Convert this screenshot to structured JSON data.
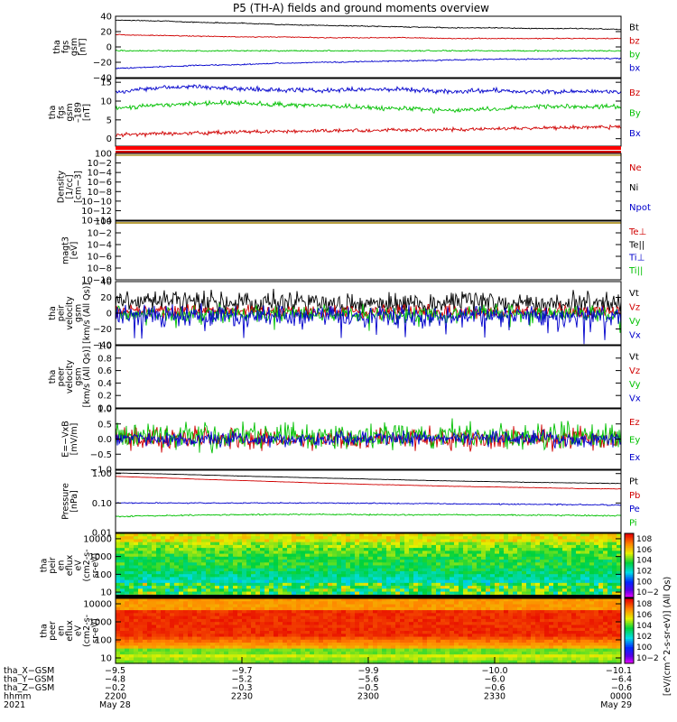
{
  "title": "P5 (TH-A) fields and ground moments overview",
  "chart_data": [
    {
      "type": "line",
      "ylabel": [
        "tha",
        "fgs",
        "gsm",
        "[nT]"
      ],
      "ylim": [
        -40,
        40
      ],
      "yticks": [
        "40",
        "20",
        "0",
        "−20",
        "−40"
      ],
      "tick_values": [
        40,
        20,
        0,
        -20,
        -40
      ],
      "series": [
        {
          "name": "Bt",
          "color": "#000000",
          "values": [
            35,
            34,
            32,
            31,
            29,
            28,
            27,
            26,
            25,
            25,
            24,
            24,
            23
          ],
          "noise": 0.3
        },
        {
          "name": "bz",
          "color": "#d00000",
          "values": [
            16,
            15,
            14,
            13,
            13,
            12,
            12,
            12,
            11,
            11,
            11,
            11,
            11
          ],
          "noise": 0.3
        },
        {
          "name": "by",
          "color": "#00c000",
          "values": [
            -5,
            -5,
            -5,
            -5,
            -5,
            -5,
            -5,
            -5,
            -5,
            -5,
            -5,
            -5,
            -5
          ],
          "noise": 0.4
        },
        {
          "name": "bx",
          "color": "#0000cc",
          "values": [
            -28,
            -26,
            -24,
            -23,
            -21,
            -20,
            -19,
            -18,
            -17,
            -16,
            -16,
            -15,
            -15
          ],
          "noise": 0.4
        }
      ]
    },
    {
      "type": "line",
      "ylabel": [
        "tha",
        "fgs",
        "gsm",
        "–189",
        "[nT]"
      ],
      "ylim": [
        -2,
        16
      ],
      "yticks": [
        "15",
        "10",
        "5",
        "0"
      ],
      "tick_values": [
        15,
        10,
        5,
        0
      ],
      "series": [
        {
          "name": "Bz",
          "color": "#d00000",
          "values": [
            1.0,
            1.3,
            1.5,
            1.8,
            2.0,
            2.1,
            2.2,
            2.3,
            2.4,
            2.6,
            2.8,
            3.0,
            3.2
          ],
          "noise": 0.25
        },
        {
          "name": "By",
          "color": "#00c000",
          "values": [
            8.0,
            9.0,
            9.5,
            9.5,
            9.0,
            8.8,
            8.3,
            8.0,
            7.5,
            8.0,
            8.5,
            8.5,
            8.5
          ],
          "noise": 0.3
        },
        {
          "name": "Bx",
          "color": "#0000cc",
          "values": [
            12.5,
            13.5,
            13.8,
            13.2,
            13.0,
            12.8,
            13.2,
            13.0,
            12.5,
            12.8,
            12.5,
            12.5,
            12.5
          ],
          "noise": 0.3
        }
      ]
    },
    {
      "type": "line",
      "scale": "log",
      "ylabel": [
        "Density",
        "[1/cc]",
        "[cm−3]"
      ],
      "ylim": [
        1e-14,
        1
      ],
      "yticks": [
        "100",
        "10−2",
        "10−4",
        "10−6",
        "10−8",
        "10−10",
        "10−12",
        "10−14"
      ],
      "tick_values": [
        1,
        0.01,
        0.0001,
        1e-06,
        1e-08,
        1e-10,
        1e-12,
        1e-14
      ],
      "series": [
        {
          "name": "Ne",
          "color": "#d00000"
        },
        {
          "name": "Ni",
          "color": "#000000"
        },
        {
          "name": "Npot",
          "color": "#0000cc"
        }
      ]
    },
    {
      "type": "line",
      "scale": "log",
      "ylabel": [
        "magt3",
        "[eV]"
      ],
      "ylim": [
        1e-10,
        1
      ],
      "yticks": [
        "100",
        "10−2",
        "10−4",
        "10−6",
        "10−8",
        "10−10"
      ],
      "tick_values": [
        1,
        0.01,
        0.0001,
        1e-06,
        1e-08,
        1e-10
      ],
      "series": [
        {
          "name": "Te⊥",
          "color": "#d00000"
        },
        {
          "name": "Te||",
          "color": "#000000"
        },
        {
          "name": "Ti⊥",
          "color": "#0000cc"
        },
        {
          "name": "Ti||",
          "color": "#00c000"
        }
      ]
    },
    {
      "type": "line",
      "ylabel": [
        "tha",
        "peir",
        "velocity",
        "gsm",
        "[km/s (All Qs)]"
      ],
      "ylim": [
        -40,
        40
      ],
      "yticks": [
        "40",
        "20",
        "0",
        "−20",
        "−40"
      ],
      "tick_values": [
        40,
        20,
        0,
        -20,
        -40
      ],
      "series": [
        {
          "name": "Vt",
          "color": "#000000",
          "values": [
            15,
            15,
            14,
            14,
            14,
            14,
            13,
            13,
            13,
            13,
            13,
            13,
            13
          ],
          "noise": 7
        },
        {
          "name": "Vz",
          "color": "#d00000",
          "values": [
            3,
            3,
            2,
            2,
            2,
            2,
            2,
            2,
            2,
            2,
            2,
            2,
            2
          ],
          "noise": 4
        },
        {
          "name": "Vy",
          "color": "#00c000",
          "values": [
            -1,
            -1,
            -1,
            -1,
            -1,
            -1,
            -1,
            -1,
            -1,
            -1,
            -1,
            -1,
            -1
          ],
          "noise": 5
        },
        {
          "name": "Vx",
          "color": "#0000cc",
          "values": [
            -3,
            -3,
            -3,
            -3,
            -3,
            -3,
            -3,
            -3,
            -3,
            -3,
            -3,
            -3,
            -3
          ],
          "noise": 6
        }
      ]
    },
    {
      "type": "line",
      "ylabel": [
        "tha",
        "peer",
        "velocity",
        "gsm",
        "[km/s (All Qs)]"
      ],
      "ylim": [
        0,
        1
      ],
      "yticks": [
        "1.0",
        "0.8",
        "0.6",
        "0.4",
        "0.2",
        "0.0"
      ],
      "tick_values": [
        1,
        0.8,
        0.6,
        0.4,
        0.2,
        0
      ],
      "series": [
        {
          "name": "Vt",
          "color": "#000000"
        },
        {
          "name": "Vz",
          "color": "#d00000"
        },
        {
          "name": "Vy",
          "color": "#00c000"
        },
        {
          "name": "Vx",
          "color": "#0000cc"
        }
      ]
    },
    {
      "type": "line",
      "ylabel": [
        "E=−VxB",
        "[mV/m]"
      ],
      "ylim": [
        -1,
        1
      ],
      "yticks": [
        "1.0",
        "0.5",
        "0.0",
        "−0.5",
        "−1.0"
      ],
      "tick_values": [
        1,
        0.5,
        0,
        -0.5,
        -1
      ],
      "series": [
        {
          "name": "Ez",
          "color": "#d00000",
          "values": [
            0,
            0,
            0,
            0,
            0,
            0,
            0,
            0,
            0,
            0,
            0,
            0,
            0
          ],
          "noise": 0.18
        },
        {
          "name": "Ey",
          "color": "#00c000",
          "values": [
            0.15,
            0.15,
            0.12,
            0.12,
            0.1,
            0.1,
            0.1,
            0.1,
            0.1,
            0.1,
            0.1,
            0.1,
            0.1
          ],
          "noise": 0.22
        },
        {
          "name": "Ex",
          "color": "#0000cc",
          "values": [
            0,
            0,
            0,
            0,
            0,
            0,
            0,
            0,
            0,
            0,
            0,
            0,
            0
          ],
          "noise": 0.12
        }
      ]
    },
    {
      "type": "line",
      "scale": "log",
      "ylabel": [
        "Pressure",
        "[nPa]"
      ],
      "ylim": [
        0.01,
        1.3
      ],
      "yticks": [
        "1.00",
        "0.10",
        "0.01"
      ],
      "tick_values": [
        1,
        0.1,
        0.01
      ],
      "series": [
        {
          "name": "Pt",
          "color": "#000000",
          "values": [
            1.05,
            0.98,
            0.9,
            0.82,
            0.76,
            0.7,
            0.65,
            0.6,
            0.56,
            0.53,
            0.5,
            0.48,
            0.46
          ],
          "noise": 0.004
        },
        {
          "name": "Pb",
          "color": "#d00000",
          "values": [
            0.8,
            0.72,
            0.64,
            0.58,
            0.52,
            0.47,
            0.43,
            0.4,
            0.37,
            0.35,
            0.33,
            0.31,
            0.3
          ],
          "noise": 0.003
        },
        {
          "name": "Pe",
          "color": "#0000cc",
          "values": [
            0.1,
            0.1,
            0.1,
            0.1,
            0.1,
            0.1,
            0.098,
            0.096,
            0.094,
            0.092,
            0.09,
            0.088,
            0.085
          ],
          "noise": 0.002
        },
        {
          "name": "Pi",
          "color": "#00c000",
          "values": [
            0.035,
            0.037,
            0.039,
            0.04,
            0.041,
            0.041,
            0.04,
            0.04,
            0.04,
            0.039,
            0.039,
            0.038,
            0.037
          ],
          "noise": 0.001
        }
      ]
    },
    {
      "type": "heatmap",
      "ylabel": [
        "tha",
        "peir",
        "en",
        "eflux",
        "eV",
        "(cm2-s-",
        "sr-eV)"
      ],
      "scale": "log",
      "ylim": [
        5,
        20000
      ],
      "yticks": [
        "10000",
        "1000",
        "100",
        "10"
      ],
      "tick_values": [
        10000,
        1000,
        100,
        10
      ],
      "colorbar_ticks": [
        "108",
        "106",
        "104",
        "102",
        "100",
        "10−2"
      ],
      "colorbar_values": [
        8,
        6,
        4,
        2,
        0,
        -2
      ]
    },
    {
      "type": "heatmap",
      "ylabel": [
        "tha",
        "peer",
        "en",
        "eflux",
        "eV",
        "(cm2-s-",
        "sr-eV)"
      ],
      "scale": "log",
      "ylim": [
        5,
        20000
      ],
      "yticks": [
        "10000",
        "1000",
        "100",
        "10"
      ],
      "tick_values": [
        10000,
        1000,
        100,
        10
      ],
      "colorbar_ticks": [
        "108",
        "106",
        "104",
        "102",
        "100",
        "10−2"
      ],
      "colorbar_values": [
        8,
        6,
        4,
        2,
        0,
        -2
      ]
    }
  ],
  "colorbar_label": "[eV/(cm^2-s-sr-eV)] (All Qs)",
  "xaxis": {
    "rows": [
      {
        "label": "tha_X−GSM",
        "values": [
          "−9.5",
          "−9.7",
          "−9.9",
          "−10.0",
          "−10.1"
        ]
      },
      {
        "label": "tha_Y−GSM",
        "values": [
          "−4.8",
          "−5.2",
          "−5.6",
          "−6.0",
          "−6.4"
        ]
      },
      {
        "label": "tha_Z−GSM",
        "values": [
          "−0.2",
          "−0.3",
          "−0.5",
          "−0.6",
          "−0.6"
        ]
      },
      {
        "label": "hhmm",
        "values": [
          "2200",
          "2230",
          "2300",
          "2330",
          "0000"
        ]
      },
      {
        "label": "2021",
        "values": [
          "May 28",
          "",
          "",
          "",
          "May 29"
        ]
      }
    ]
  }
}
